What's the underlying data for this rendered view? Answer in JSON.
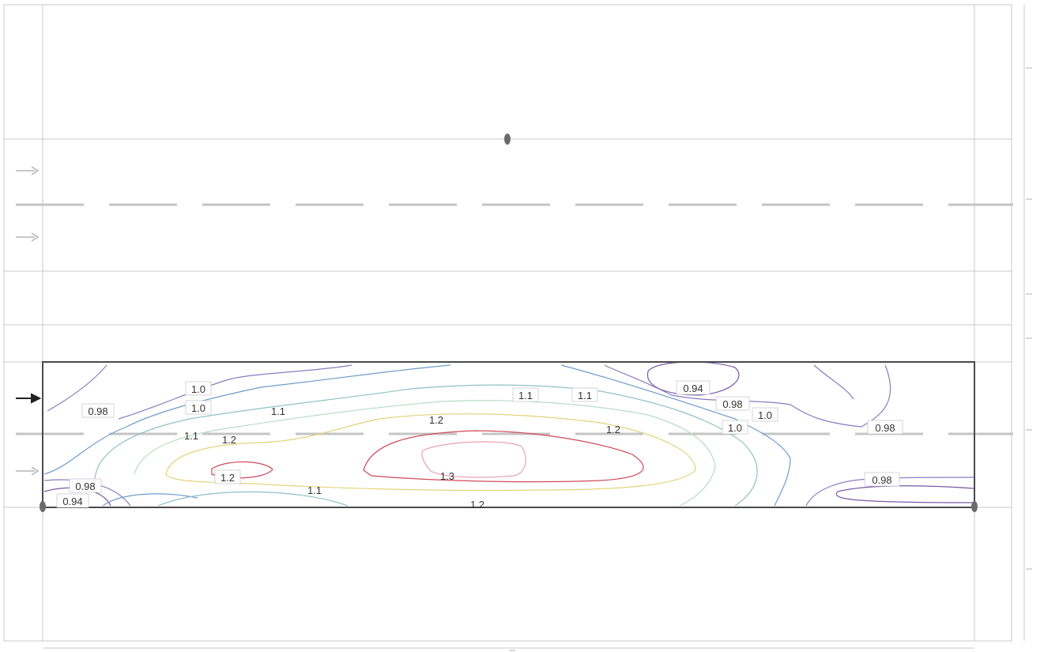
{
  "diagram": {
    "title": "",
    "contour_labels": [
      {
        "text": "1.0",
        "color": "#8a7cc0"
      },
      {
        "text": "1.0",
        "color": "#6f9ccc"
      },
      {
        "text": "0.98",
        "color": "#8a7cc0"
      },
      {
        "text": "1.1",
        "color": "#8fc1c6"
      },
      {
        "text": "1.1",
        "color": "#8fc1c6"
      },
      {
        "text": "1.2",
        "color": "#e3d27a"
      },
      {
        "text": "1.2",
        "color": "#d04a5c"
      },
      {
        "text": "1.2",
        "color": "#e3d27a"
      },
      {
        "text": "1.3",
        "color": "#d04a5c"
      },
      {
        "text": "1.1",
        "color": "#8fc1c6"
      },
      {
        "text": "0.98",
        "color": "#8a7cc0"
      },
      {
        "text": "0.94",
        "color": "#7a5aa8"
      },
      {
        "text": "1.2",
        "color": "#e3d27a"
      },
      {
        "text": "1.1",
        "color": "#8fc1c6"
      },
      {
        "text": "1.1",
        "color": "#8fc1c6"
      },
      {
        "text": "0.94",
        "color": "#7a5aa8"
      },
      {
        "text": "0.98",
        "color": "#8a7cc0"
      },
      {
        "text": "1.0",
        "color": "#6f9ccc"
      },
      {
        "text": "1.2",
        "color": "#e3d27a"
      },
      {
        "text": "1.0",
        "color": "#6f9ccc"
      },
      {
        "text": "0.98",
        "color": "#8a7cc0"
      },
      {
        "text": "0.98",
        "color": "#8a7cc0"
      }
    ],
    "colors": {
      "frame": "#c8c8c8",
      "lane_dash": "#c4c4c4",
      "box": "#4a4a4a",
      "arrow_active": "#222222",
      "arrow_inactive": "#b5b5b5",
      "luminaire": "#6a6a6a"
    },
    "icons": {
      "luminaire": "luminaire-icon",
      "direction": "arrow-right-icon"
    }
  }
}
